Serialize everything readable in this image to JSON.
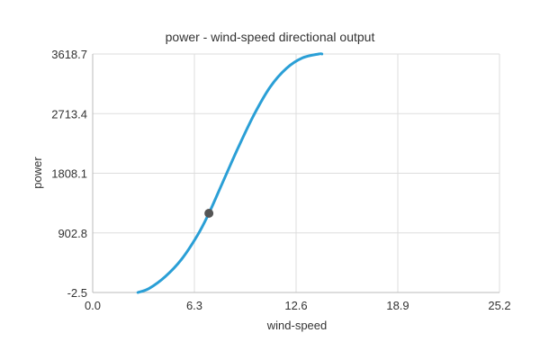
{
  "chart_data": {
    "type": "line",
    "title": "power - wind-speed directional output",
    "xlabel": "wind-speed",
    "ylabel": "power",
    "xlim": [
      0.0,
      25.2
    ],
    "ylim": [
      -2.5,
      3618.7
    ],
    "x_ticks": [
      "0.0",
      "6.3",
      "12.6",
      "18.9",
      "25.2"
    ],
    "y_ticks": [
      "-2.5",
      "902.8",
      "1808.1",
      "2713.4",
      "3618.7"
    ],
    "grid": true,
    "legend": "none",
    "series": [
      {
        "color": "#2a9fd6",
        "x": [
          2.8,
          3.5,
          4.5,
          5.5,
          6.5,
          7.2,
          8.0,
          9.0,
          10.0,
          11.0,
          12.0,
          13.0,
          14.0,
          14.2
        ],
        "y": [
          -2.5,
          60,
          240,
          500,
          870,
          1200,
          1640,
          2190,
          2700,
          3120,
          3400,
          3560,
          3618.7,
          3618.7
        ]
      }
    ],
    "highlight_point": {
      "x": 7.2,
      "y": 1200,
      "color": "#555555"
    }
  }
}
